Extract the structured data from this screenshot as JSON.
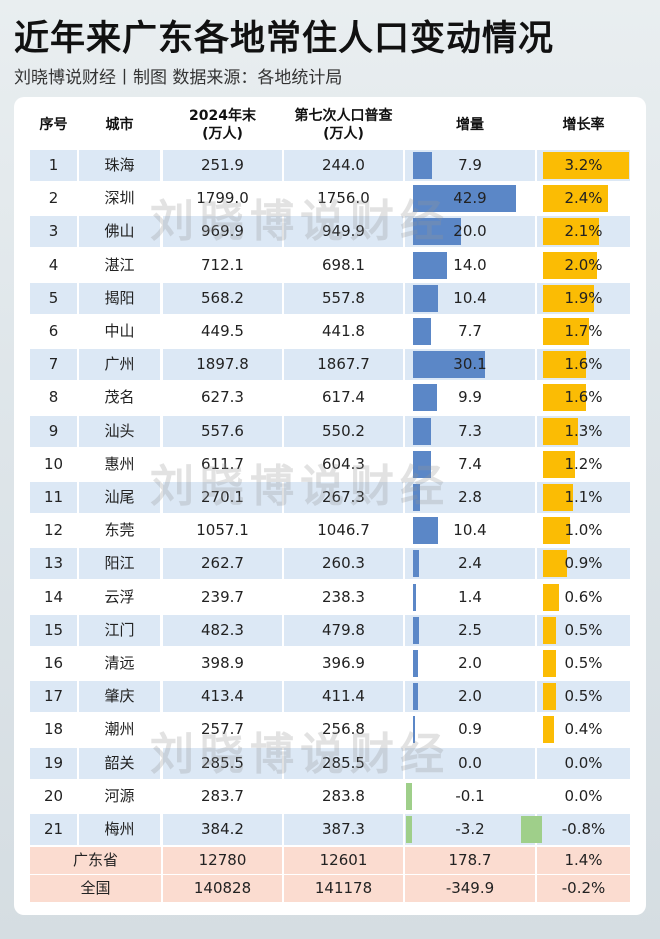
{
  "title": "近年来广东各地常住人口变动情况",
  "subtitle": "刘晓博说财经丨制图    数据来源：各地统计局",
  "watermark": "刘晓博说财经",
  "colors": {
    "increase_bar": "#5b87c7",
    "rate_bar": "#fbbc04",
    "negative_bar": "#9fcf8a",
    "stripe": "#dce8f5",
    "summary": "#fbdcd0"
  },
  "chart_data": {
    "type": "table",
    "columns": [
      {
        "label": "序号",
        "sub": ""
      },
      {
        "label": "城市",
        "sub": ""
      },
      {
        "label": "2024年末",
        "sub": "(万人)"
      },
      {
        "label": "第七次人口普查",
        "sub": "(万人)"
      },
      {
        "label": "增量",
        "sub": ""
      },
      {
        "label": "增长率",
        "sub": ""
      }
    ],
    "rows": [
      [
        "1",
        "珠海",
        "251.9",
        "244.0",
        "7.9",
        "3.2%"
      ],
      [
        "2",
        "深圳",
        "1799.0",
        "1756.0",
        "42.9",
        "2.4%"
      ],
      [
        "3",
        "佛山",
        "969.9",
        "949.9",
        "20.0",
        "2.1%"
      ],
      [
        "4",
        "湛江",
        "712.1",
        "698.1",
        "14.0",
        "2.0%"
      ],
      [
        "5",
        "揭阳",
        "568.2",
        "557.8",
        "10.4",
        "1.9%"
      ],
      [
        "6",
        "中山",
        "449.5",
        "441.8",
        "7.7",
        "1.7%"
      ],
      [
        "7",
        "广州",
        "1897.8",
        "1867.7",
        "30.1",
        "1.6%"
      ],
      [
        "8",
        "茂名",
        "627.3",
        "617.4",
        "9.9",
        "1.6%"
      ],
      [
        "9",
        "汕头",
        "557.6",
        "550.2",
        "7.3",
        "1.3%"
      ],
      [
        "10",
        "惠州",
        "611.7",
        "604.3",
        "7.4",
        "1.2%"
      ],
      [
        "11",
        "汕尾",
        "270.1",
        "267.3",
        "2.8",
        "1.1%"
      ],
      [
        "12",
        "东莞",
        "1057.1",
        "1046.7",
        "10.4",
        "1.0%"
      ],
      [
        "13",
        "阳江",
        "262.7",
        "260.3",
        "2.4",
        "0.9%"
      ],
      [
        "14",
        "云浮",
        "239.7",
        "238.3",
        "1.4",
        "0.6%"
      ],
      [
        "15",
        "江门",
        "482.3",
        "479.8",
        "2.5",
        "0.5%"
      ],
      [
        "16",
        "清远",
        "398.9",
        "396.9",
        "2.0",
        "0.5%"
      ],
      [
        "17",
        "肇庆",
        "413.4",
        "411.4",
        "2.0",
        "0.5%"
      ],
      [
        "18",
        "潮州",
        "257.7",
        "256.8",
        "0.9",
        "0.4%"
      ],
      [
        "19",
        "韶关",
        "285.5",
        "285.5",
        "0.0",
        "0.0%"
      ],
      [
        "20",
        "河源",
        "283.7",
        "283.8",
        "-0.1",
        "0.0%"
      ],
      [
        "21",
        "梅州",
        "384.2",
        "387.3",
        "-3.2",
        "-0.8%"
      ]
    ],
    "summary_rows": [
      [
        "广东省",
        "12780",
        "12601",
        "178.7",
        "1.4%"
      ],
      [
        "全国",
        "140828",
        "141178",
        "-349.9",
        "-0.2%"
      ]
    ]
  }
}
